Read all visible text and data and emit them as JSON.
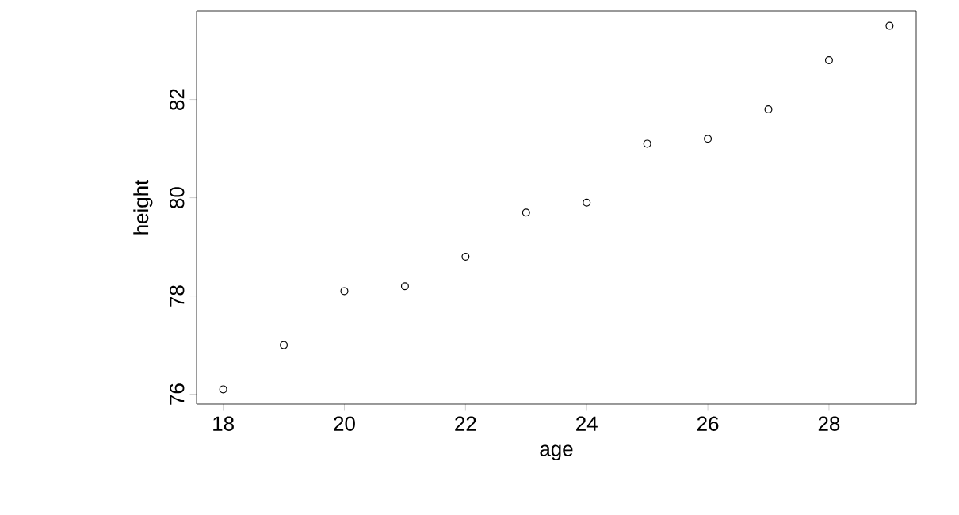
{
  "chart_data": {
    "type": "scatter",
    "xlabel": "age",
    "ylabel": "height",
    "x": [
      18,
      19,
      20,
      21,
      22,
      23,
      24,
      25,
      26,
      27,
      28,
      29
    ],
    "values": [
      76.1,
      77.0,
      78.1,
      78.2,
      78.8,
      79.7,
      79.9,
      81.1,
      81.2,
      81.8,
      82.8,
      83.5
    ],
    "color": "#000000",
    "marker": "circle",
    "xlim": [
      17.56,
      29.44
    ],
    "ylim": [
      75.8,
      83.8
    ],
    "xticks": [
      18,
      20,
      22,
      24,
      26,
      28
    ],
    "yticks": [
      76,
      78,
      80,
      82
    ]
  }
}
